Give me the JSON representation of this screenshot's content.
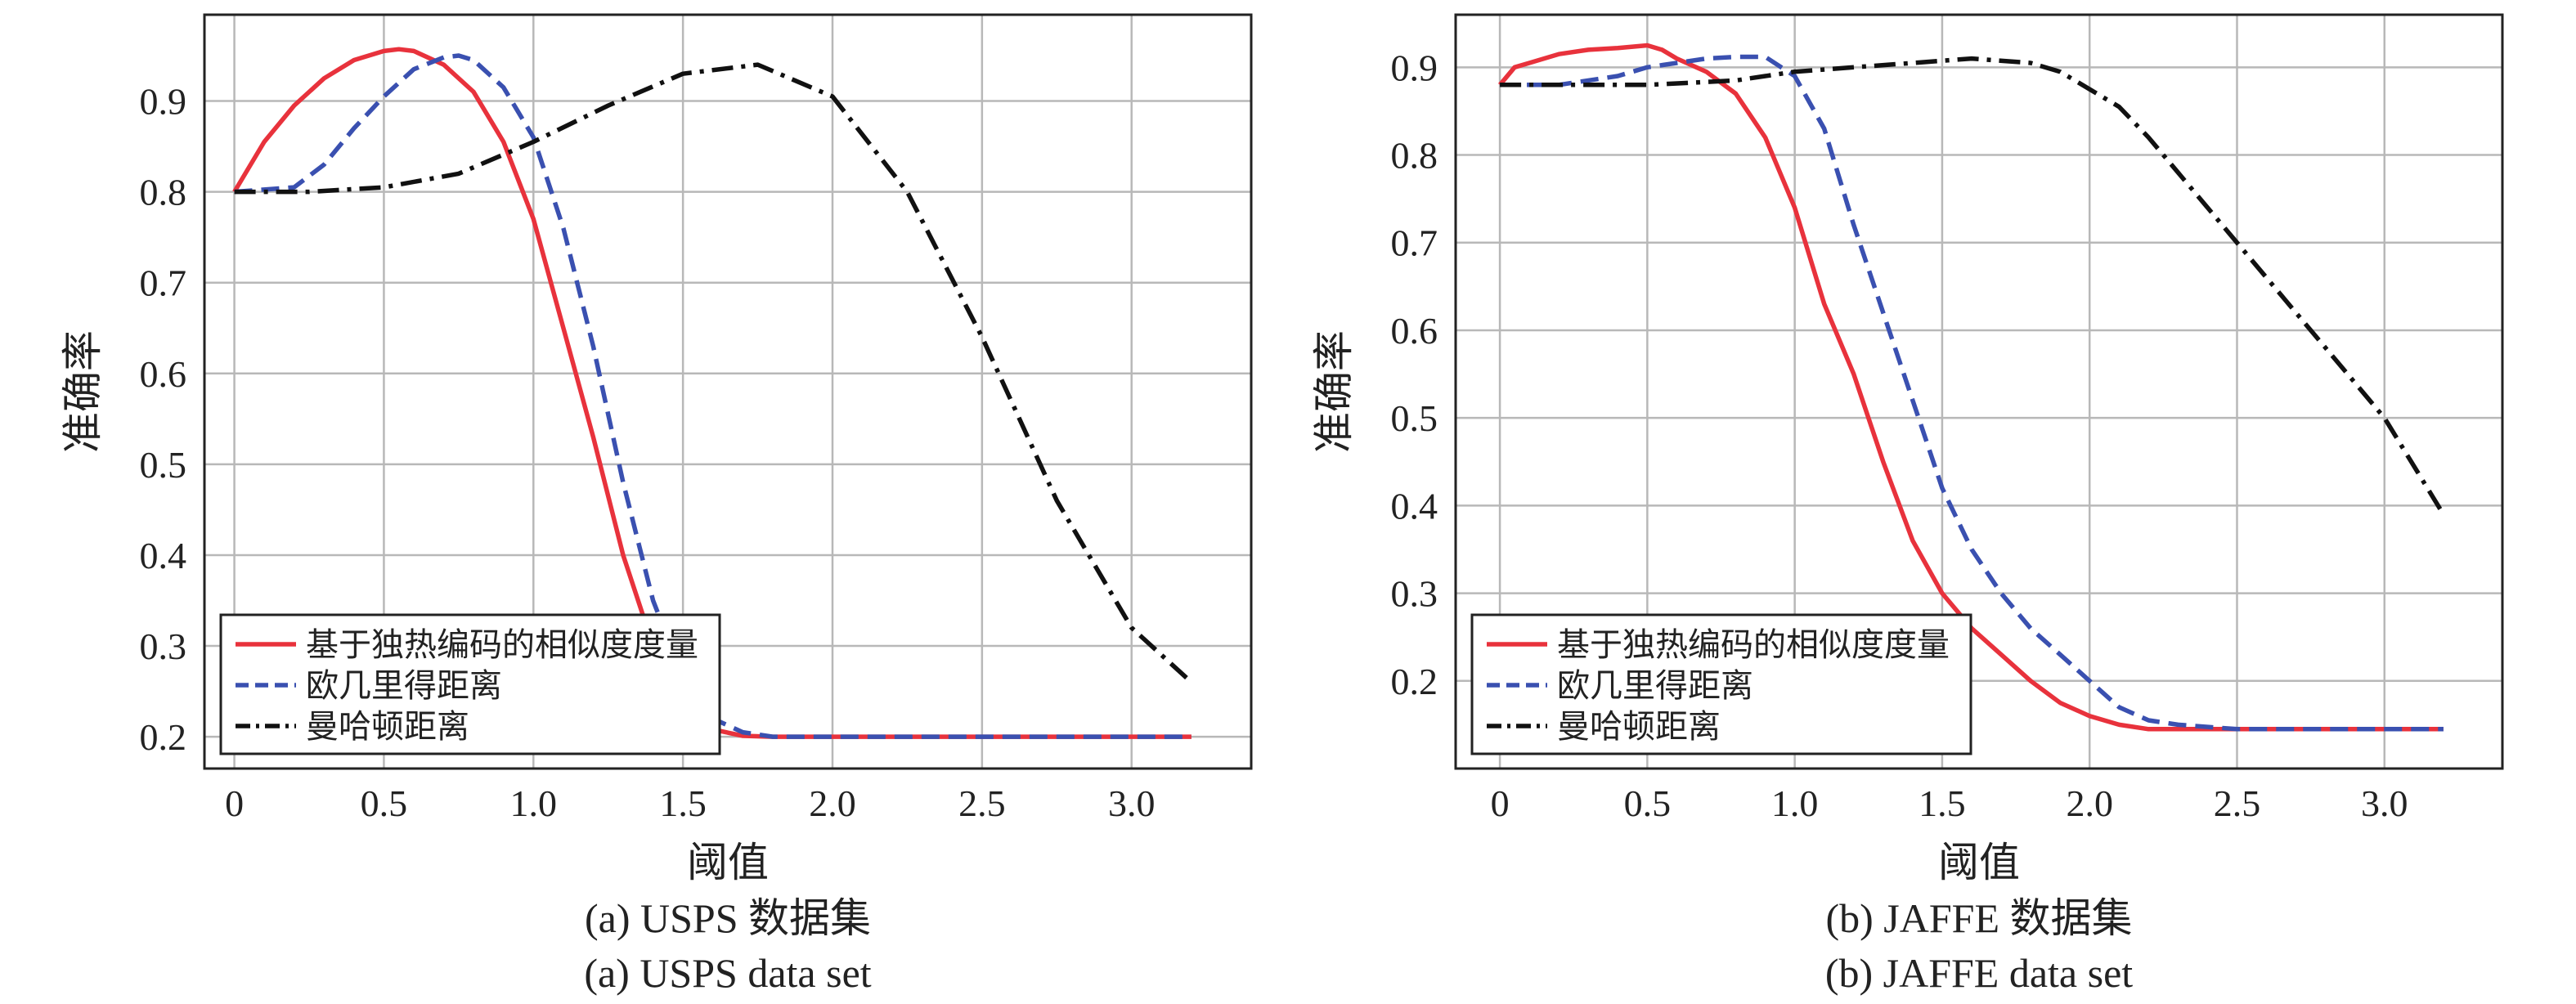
{
  "colors": {
    "red": "#e8323c",
    "blue": "#3a50b0",
    "black": "#111111",
    "grid": "#b8b8b8"
  },
  "chart_data": [
    {
      "type": "line",
      "xlabel": "阈值",
      "ylabel": "准确率",
      "caption_cn": "(a) USPS 数据集",
      "caption_en": "(a) USPS data set",
      "xlim": [
        -0.1,
        3.4
      ],
      "ylim": [
        0.165,
        0.995
      ],
      "xticks": [
        0,
        0.5,
        1.0,
        1.5,
        2.0,
        2.5,
        3.0
      ],
      "xtick_labels": [
        "0",
        "0.5",
        "1.0",
        "1.5",
        "2.0",
        "2.5",
        "3.0"
      ],
      "yticks": [
        0.2,
        0.3,
        0.4,
        0.5,
        0.6,
        0.7,
        0.8,
        0.9
      ],
      "ytick_labels": [
        "0.2",
        "0.3",
        "0.4",
        "0.5",
        "0.6",
        "0.7",
        "0.8",
        "0.9"
      ],
      "grid": true,
      "legend": "bottom-left",
      "series": [
        {
          "name": "基于独热编码的相似度度量",
          "color": "#e8323c",
          "dash": "solid",
          "x": [
            0,
            0.1,
            0.2,
            0.3,
            0.4,
            0.5,
            0.55,
            0.6,
            0.7,
            0.8,
            0.9,
            1.0,
            1.1,
            1.2,
            1.3,
            1.4,
            1.5,
            1.6,
            1.7,
            1.8,
            2.0,
            2.5,
            3.0,
            3.2
          ],
          "y": [
            0.8,
            0.855,
            0.895,
            0.925,
            0.945,
            0.955,
            0.957,
            0.955,
            0.94,
            0.91,
            0.855,
            0.77,
            0.65,
            0.53,
            0.4,
            0.3,
            0.235,
            0.208,
            0.201,
            0.2,
            0.2,
            0.2,
            0.2,
            0.2
          ]
        },
        {
          "name": "欧几里得距离",
          "color": "#3a50b0",
          "dash": "dash",
          "x": [
            0,
            0.2,
            0.3,
            0.4,
            0.5,
            0.6,
            0.7,
            0.75,
            0.8,
            0.9,
            1.0,
            1.1,
            1.2,
            1.3,
            1.4,
            1.5,
            1.6,
            1.7,
            1.8,
            2.0,
            2.5,
            3.0,
            3.2
          ],
          "y": [
            0.8,
            0.805,
            0.83,
            0.87,
            0.905,
            0.935,
            0.948,
            0.95,
            0.945,
            0.915,
            0.86,
            0.76,
            0.63,
            0.48,
            0.35,
            0.265,
            0.22,
            0.205,
            0.2,
            0.2,
            0.2,
            0.2,
            0.2
          ]
        },
        {
          "name": "曼哈顿距离",
          "color": "#111111",
          "dash": "dashdot",
          "x": [
            0,
            0.25,
            0.5,
            0.75,
            1.0,
            1.25,
            1.5,
            1.75,
            2.0,
            2.25,
            2.5,
            2.75,
            3.0,
            3.2
          ],
          "y": [
            0.8,
            0.8,
            0.805,
            0.82,
            0.855,
            0.895,
            0.93,
            0.94,
            0.905,
            0.8,
            0.64,
            0.46,
            0.32,
            0.26
          ]
        }
      ]
    },
    {
      "type": "line",
      "xlabel": "阈值",
      "ylabel": "准确率",
      "caption_cn": "(b) JAFFE 数据集",
      "caption_en": "(b) JAFFE data set",
      "xlim": [
        -0.15,
        3.4
      ],
      "ylim": [
        0.1,
        0.96
      ],
      "xticks": [
        0,
        0.5,
        1.0,
        1.5,
        2.0,
        2.5,
        3.0
      ],
      "xtick_labels": [
        "0",
        "0.5",
        "1.0",
        "1.5",
        "2.0",
        "2.5",
        "3.0"
      ],
      "yticks": [
        0.2,
        0.3,
        0.4,
        0.5,
        0.6,
        0.7,
        0.8,
        0.9
      ],
      "ytick_labels": [
        "0.2",
        "0.3",
        "0.4",
        "0.5",
        "0.6",
        "0.7",
        "0.8",
        "0.9"
      ],
      "grid": true,
      "legend": "bottom-left",
      "series": [
        {
          "name": "基于独热编码的相似度度量",
          "color": "#e8323c",
          "dash": "solid",
          "x": [
            0,
            0.05,
            0.1,
            0.2,
            0.3,
            0.4,
            0.5,
            0.55,
            0.6,
            0.7,
            0.8,
            0.9,
            1.0,
            1.1,
            1.2,
            1.3,
            1.4,
            1.5,
            1.6,
            1.7,
            1.8,
            1.9,
            2.0,
            2.1,
            2.2,
            2.5,
            3.0,
            3.2
          ],
          "y": [
            0.88,
            0.9,
            0.905,
            0.915,
            0.92,
            0.922,
            0.925,
            0.92,
            0.91,
            0.895,
            0.87,
            0.82,
            0.74,
            0.63,
            0.55,
            0.45,
            0.36,
            0.3,
            0.26,
            0.23,
            0.2,
            0.175,
            0.16,
            0.15,
            0.145,
            0.145,
            0.145,
            0.145
          ]
        },
        {
          "name": "欧几里得距离",
          "color": "#3a50b0",
          "dash": "dash",
          "x": [
            0,
            0.2,
            0.4,
            0.5,
            0.6,
            0.7,
            0.8,
            0.9,
            1.0,
            1.1,
            1.2,
            1.3,
            1.4,
            1.5,
            1.6,
            1.7,
            1.8,
            1.9,
            2.0,
            2.1,
            2.2,
            2.3,
            2.5,
            3.0,
            3.2
          ],
          "y": [
            0.88,
            0.88,
            0.89,
            0.9,
            0.905,
            0.91,
            0.912,
            0.912,
            0.89,
            0.83,
            0.72,
            0.62,
            0.52,
            0.42,
            0.35,
            0.3,
            0.26,
            0.23,
            0.2,
            0.17,
            0.155,
            0.15,
            0.145,
            0.145,
            0.145
          ]
        },
        {
          "name": "曼哈顿距离",
          "color": "#111111",
          "dash": "dashdot",
          "x": [
            0,
            0.5,
            0.8,
            1.0,
            1.2,
            1.4,
            1.6,
            1.8,
            1.9,
            2.0,
            2.1,
            2.2,
            2.4,
            2.6,
            2.8,
            3.0,
            3.2
          ],
          "y": [
            0.88,
            0.88,
            0.885,
            0.895,
            0.9,
            0.905,
            0.91,
            0.905,
            0.895,
            0.875,
            0.855,
            0.82,
            0.74,
            0.66,
            0.58,
            0.5,
            0.39
          ]
        }
      ]
    }
  ]
}
